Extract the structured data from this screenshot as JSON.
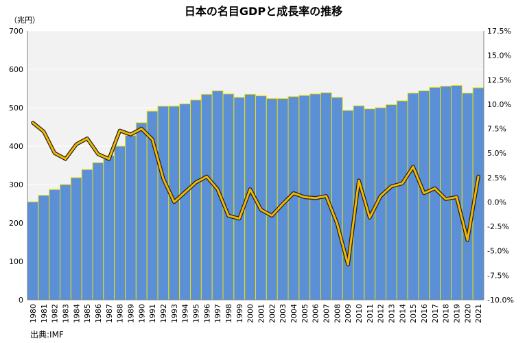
{
  "chart_data": {
    "type": "bar",
    "title": "日本の名目GDPと成長率の推移",
    "y_unit_label": "（兆円）",
    "source_label": "出典:IMF",
    "categories": [
      "1980",
      "1981",
      "1982",
      "1983",
      "1984",
      "1985",
      "1986",
      "1987",
      "1988",
      "1989",
      "1990",
      "1991",
      "1992",
      "1993",
      "1994",
      "1995",
      "1996",
      "1997",
      "1998",
      "1999",
      "2000",
      "2001",
      "2002",
      "2003",
      "2004",
      "2005",
      "2006",
      "2007",
      "2008",
      "2009",
      "2010",
      "2011",
      "2012",
      "2013",
      "2014",
      "2015",
      "2016",
      "2017",
      "2018",
      "2019",
      "2020",
      "2021"
    ],
    "series": [
      {
        "axis": "left",
        "type": "bar",
        "values": [
          255,
          272,
          287,
          300,
          318,
          339,
          357,
          375,
          400,
          428,
          461,
          491,
          504,
          504,
          510,
          520,
          535,
          544,
          536,
          527,
          535,
          531,
          524,
          524,
          529,
          532,
          536,
          539,
          527,
          493,
          505,
          497,
          500,
          508,
          518,
          538,
          544,
          553,
          556,
          558,
          538,
          552
        ]
      },
      {
        "axis": "right",
        "type": "line",
        "values": [
          8.1,
          7.2,
          5.0,
          4.4,
          5.9,
          6.5,
          4.9,
          4.4,
          7.3,
          6.9,
          7.5,
          6.4,
          2.4,
          0.0,
          1.0,
          2.0,
          2.6,
          1.3,
          -1.4,
          -1.7,
          1.3,
          -0.8,
          -1.4,
          -0.2,
          0.9,
          0.5,
          0.4,
          0.6,
          -2.2,
          -6.4,
          2.2,
          -1.6,
          0.6,
          1.6,
          1.9,
          3.6,
          0.9,
          1.4,
          0.3,
          0.5,
          -3.9,
          2.6
        ]
      }
    ],
    "y_left": {
      "min": 0,
      "max": 700,
      "step": 100
    },
    "y_right": {
      "min": -10.0,
      "max": 17.5,
      "step": 2.5
    },
    "colors": {
      "bar_fill": "#5b8fd6",
      "bar_edge": "#f2e300",
      "line_outline": "#222222",
      "line_main": "#f5b800",
      "plot_background": "#f2f2f2",
      "grid": "#ffffff"
    },
    "grid": true,
    "legend": "none"
  }
}
